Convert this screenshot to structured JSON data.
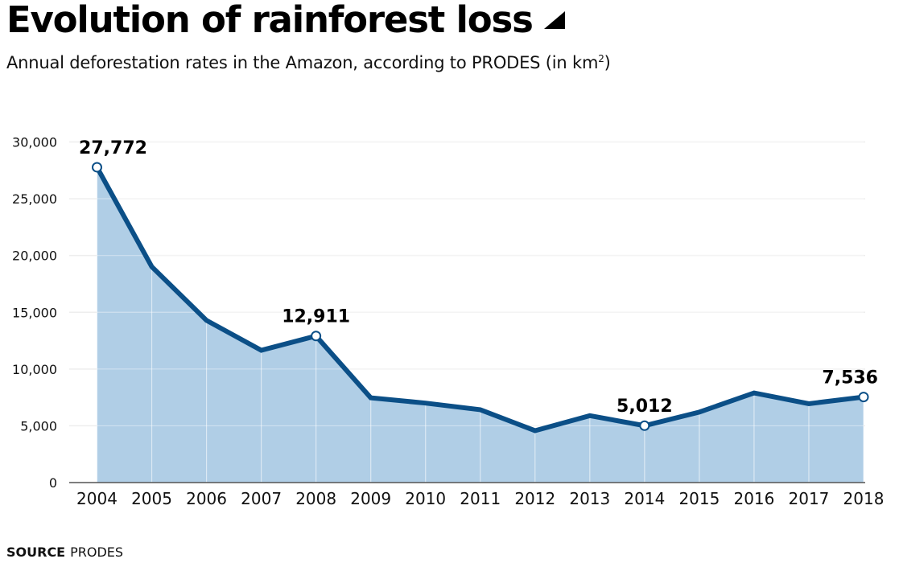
{
  "header": {
    "title": "Evolution of rainforest loss",
    "title_icon": "triangle-corner-icon",
    "subtitle": "Annual deforestation rates in the Amazon, according to PRODES (in km",
    "subtitle_sup": "2",
    "subtitle_end": ")"
  },
  "footer": {
    "source_label": "SOURCE",
    "source_value": "PRODES"
  },
  "colors": {
    "line": "#0b4f87",
    "fill": "#b0cee6",
    "grid": "#eeeeee",
    "axis": "#555555",
    "text": "#111111"
  },
  "chart_data": {
    "type": "area",
    "title": "Evolution of rainforest loss",
    "subtitle": "Annual deforestation rates in the Amazon, according to PRODES (in km²)",
    "xlabel": "",
    "ylabel": "",
    "x": [
      "2004",
      "2005",
      "2006",
      "2007",
      "2008",
      "2009",
      "2010",
      "2011",
      "2012",
      "2013",
      "2014",
      "2015",
      "2016",
      "2017",
      "2018"
    ],
    "series": [
      {
        "name": "Annual deforestation (km²)",
        "values": [
          27772,
          19014,
          14286,
          11651,
          12911,
          7464,
          7000,
          6418,
          4571,
          5891,
          5012,
          6207,
          7893,
          6947,
          7536
        ]
      }
    ],
    "ylim": [
      0,
      30000
    ],
    "yticks": [
      0,
      5000,
      10000,
      15000,
      20000,
      25000,
      30000
    ],
    "ytick_labels": [
      "0",
      "5,000",
      "10,000",
      "15,000",
      "20,000",
      "25,000",
      "30,000"
    ],
    "grid": true,
    "legend": "none",
    "annotations": [
      {
        "x": "2004",
        "value": 27772,
        "label": "27,772"
      },
      {
        "x": "2008",
        "value": 12911,
        "label": "12,911"
      },
      {
        "x": "2014",
        "value": 5012,
        "label": "5,012"
      },
      {
        "x": "2018",
        "value": 7536,
        "label": "7,536"
      }
    ],
    "source": "PRODES"
  }
}
